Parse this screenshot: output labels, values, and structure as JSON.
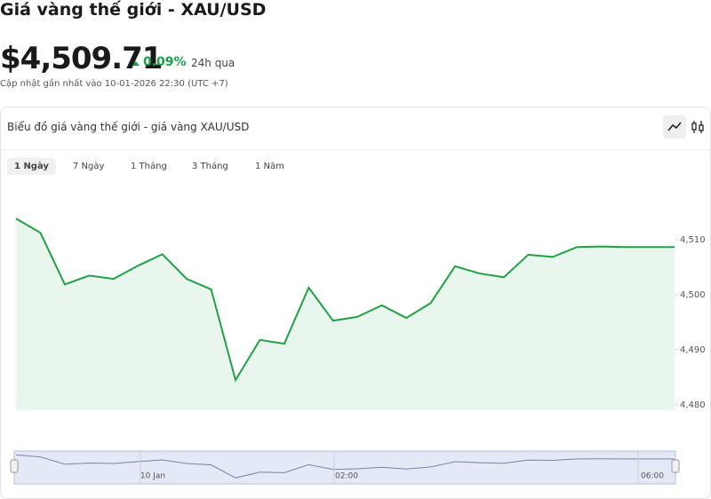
{
  "header": {
    "title": "Giá vàng thế giới - XAU/USD",
    "price": "$4,509.71",
    "change": "0.09%",
    "change_period": "24h qua",
    "updated": "Cập nhật gần nhất vào 10-01-2026 22:30 (UTC +7)"
  },
  "card": {
    "title": "Biểu đồ giá vàng thế giới - giá vàng XAU/USD",
    "tabs": [
      "1 Ngày",
      "7 Ngày",
      "1 Tháng",
      "3 Tháng",
      "1 Năm"
    ]
  },
  "chart_data": {
    "type": "area",
    "values": [
      4513.9,
      4511.3,
      4501.9,
      4503.5,
      4502.9,
      4505.3,
      4507.4,
      4502.9,
      4501.0,
      4484.5,
      4491.8,
      4491.1,
      4501.3,
      4495.3,
      4496.0,
      4498.1,
      4495.8,
      4498.5,
      4505.2,
      4503.9,
      4503.2,
      4507.3,
      4506.9,
      4508.7,
      4508.8,
      4508.7,
      4508.7,
      4508.7
    ],
    "color": "#22a045",
    "ylim": [
      4479,
      4516.5
    ],
    "yticks": [
      {
        "value": 4480,
        "label": "4,480"
      },
      {
        "value": 4490,
        "label": "4,490"
      },
      {
        "value": 4500,
        "label": "4,500"
      },
      {
        "value": 4510,
        "label": "4,510"
      }
    ],
    "navigator_labels": [
      "10 Jan",
      "02:00",
      "06:00"
    ]
  }
}
